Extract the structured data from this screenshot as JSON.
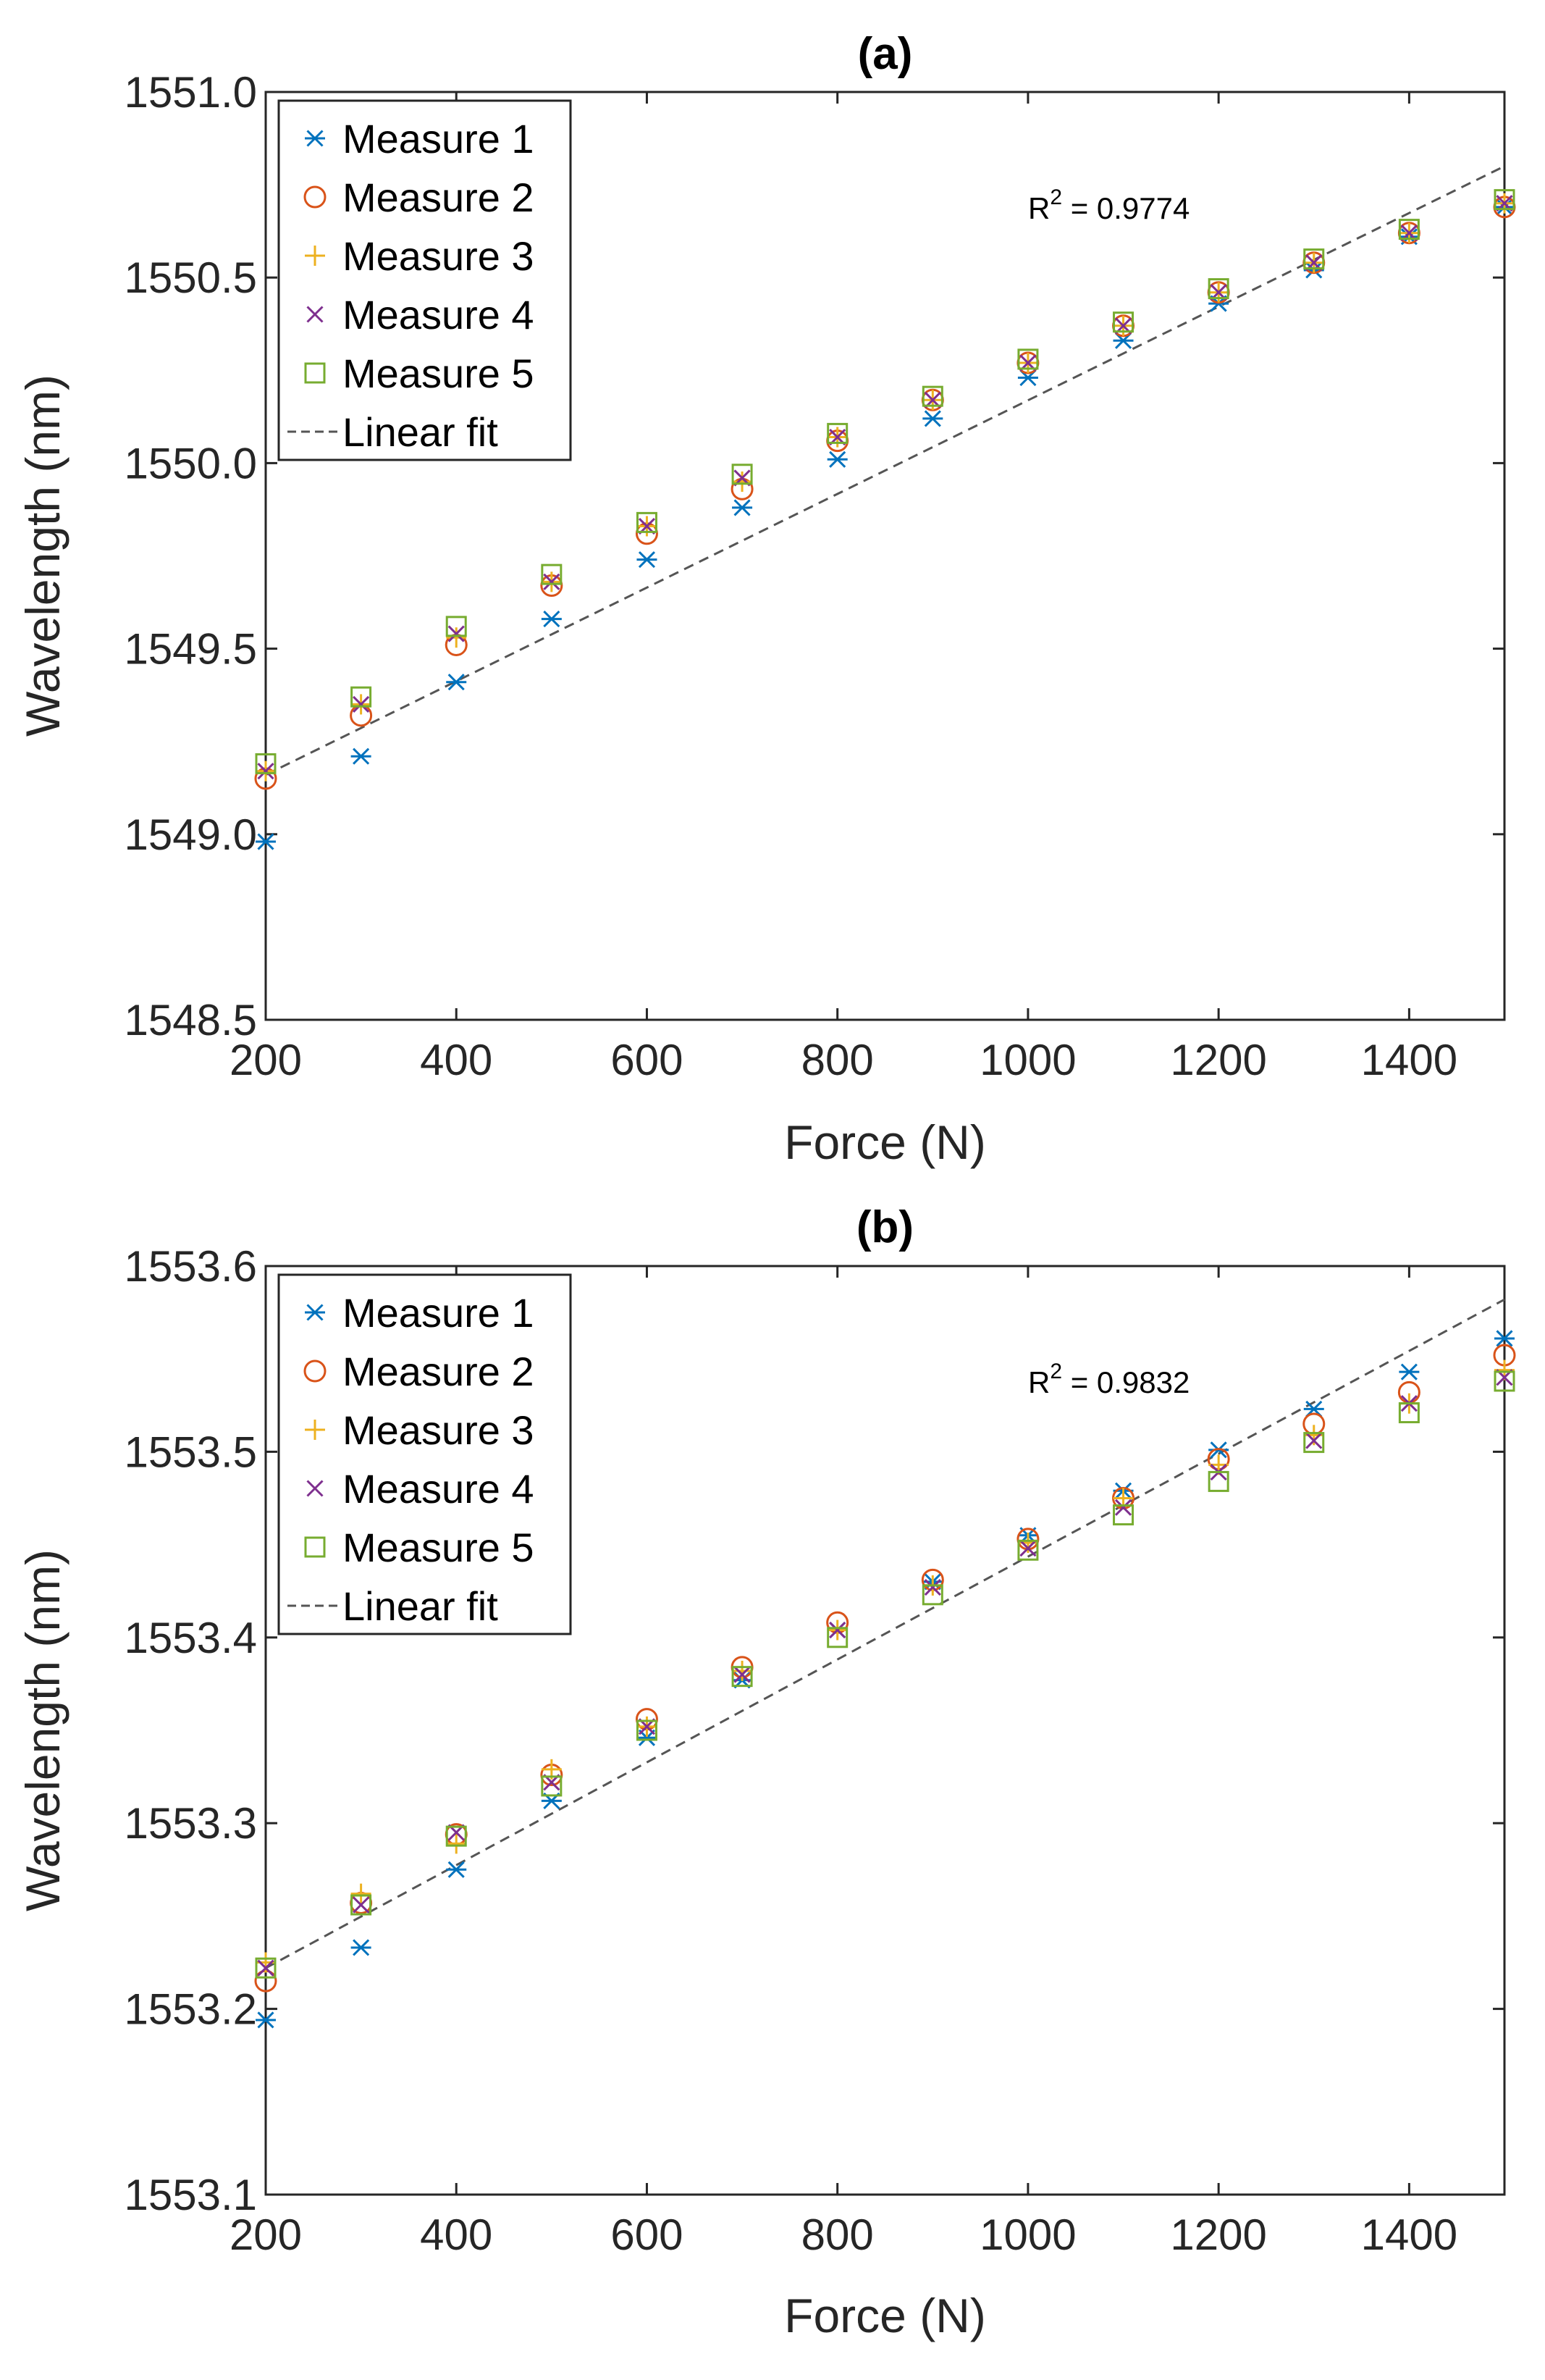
{
  "chart_data": [
    {
      "type": "scatter",
      "title": "(a)",
      "xlabel": "Force (N)",
      "ylabel": "Wavelength (nm)",
      "xlim": [
        200,
        1500
      ],
      "ylim": [
        1548.5,
        1551.0
      ],
      "xticks": [
        200,
        400,
        600,
        800,
        1000,
        1200,
        1400
      ],
      "xtick_labels": [
        "200",
        "400",
        "600",
        "800",
        "1000",
        "1200",
        "1400"
      ],
      "yticks": [
        1548.5,
        1549.0,
        1549.5,
        1550.0,
        1550.5,
        1551.0
      ],
      "ytick_labels": [
        "1548.5",
        "1549.0",
        "1549.5",
        "1550.0",
        "1550.5",
        "1551.0"
      ],
      "grid": false,
      "legend_position": "top-left",
      "annotation": {
        "prefix": "R",
        "sup": "2",
        "suffix": " = 0.9774"
      },
      "x": [
        200,
        300,
        400,
        500,
        600,
        700,
        800,
        900,
        1000,
        1100,
        1200,
        1300,
        1400,
        1500
      ],
      "series": [
        {
          "name": "Measure 1",
          "marker": "asterisk",
          "color": "#0072BD",
          "values": [
            1548.98,
            1549.21,
            1549.41,
            1549.58,
            1549.74,
            1549.88,
            1550.01,
            1550.12,
            1550.23,
            1550.33,
            1550.43,
            1550.52,
            1550.61,
            1550.69
          ]
        },
        {
          "name": "Measure 2",
          "marker": "circle",
          "color": "#D95319",
          "values": [
            1549.15,
            1549.32,
            1549.51,
            1549.67,
            1549.81,
            1549.93,
            1550.06,
            1550.17,
            1550.27,
            1550.37,
            1550.46,
            1550.54,
            1550.62,
            1550.69
          ]
        },
        {
          "name": "Measure 3",
          "marker": "plus",
          "color": "#EDB120",
          "values": [
            1549.17,
            1549.35,
            1549.53,
            1549.68,
            1549.83,
            1549.95,
            1550.07,
            1550.17,
            1550.27,
            1550.37,
            1550.46,
            1550.54,
            1550.62,
            1550.7
          ]
        },
        {
          "name": "Measure 4",
          "marker": "cross",
          "color": "#7E2F8E",
          "values": [
            1549.17,
            1549.35,
            1549.54,
            1549.68,
            1549.83,
            1549.96,
            1550.07,
            1550.17,
            1550.27,
            1550.37,
            1550.46,
            1550.54,
            1550.62,
            1550.7
          ]
        },
        {
          "name": "Measure 5",
          "marker": "square",
          "color": "#77AC30",
          "values": [
            1549.19,
            1549.37,
            1549.56,
            1549.7,
            1549.84,
            1549.97,
            1550.08,
            1550.18,
            1550.28,
            1550.38,
            1550.47,
            1550.55,
            1550.63,
            1550.71
          ]
        }
      ],
      "fit": {
        "name": "Linear fit",
        "style": "dashed",
        "color": "#555555",
        "x": [
          200,
          1500
        ],
        "y": [
          1549.16,
          1550.8
        ]
      }
    },
    {
      "type": "scatter",
      "title": "(b)",
      "xlabel": "Force (N)",
      "ylabel": "Wavelength (nm)",
      "xlim": [
        200,
        1500
      ],
      "ylim": [
        1553.1,
        1553.6
      ],
      "xticks": [
        200,
        400,
        600,
        800,
        1000,
        1200,
        1400
      ],
      "xtick_labels": [
        "200",
        "400",
        "600",
        "800",
        "1000",
        "1200",
        "1400"
      ],
      "yticks": [
        1553.1,
        1553.2,
        1553.3,
        1553.4,
        1553.5,
        1553.6
      ],
      "ytick_labels": [
        "1553.1",
        "1553.2",
        "1553.3",
        "1553.4",
        "1553.5",
        "1553.6"
      ],
      "grid": false,
      "legend_position": "top-left",
      "annotation": {
        "prefix": "R",
        "sup": "2",
        "suffix": " = 0.9832"
      },
      "x": [
        200,
        300,
        400,
        500,
        600,
        700,
        800,
        900,
        1000,
        1100,
        1200,
        1300,
        1400,
        1500
      ],
      "series": [
        {
          "name": "Measure 1",
          "marker": "asterisk",
          "color": "#0072BD",
          "values": [
            1553.194,
            1553.233,
            1553.275,
            1553.312,
            1553.346,
            1553.377,
            1553.404,
            1553.43,
            1553.455,
            1553.479,
            1553.501,
            1553.523,
            1553.543,
            1553.561
          ]
        },
        {
          "name": "Measure 2",
          "marker": "circle",
          "color": "#D95319",
          "values": [
            1553.215,
            1553.257,
            1553.294,
            1553.326,
            1553.356,
            1553.384,
            1553.408,
            1553.431,
            1553.453,
            1553.475,
            1553.496,
            1553.515,
            1553.532,
            1553.552
          ]
        },
        {
          "name": "Measure 3",
          "marker": "plus",
          "color": "#EDB120",
          "values": [
            1553.225,
            1553.262,
            1553.289,
            1553.329,
            1553.352,
            1553.382,
            1553.404,
            1553.428,
            1553.451,
            1553.475,
            1553.493,
            1553.509,
            1553.526,
            1553.544
          ]
        },
        {
          "name": "Measure 4",
          "marker": "cross",
          "color": "#7E2F8E",
          "values": [
            1553.222,
            1553.256,
            1553.295,
            1553.322,
            1553.352,
            1553.38,
            1553.404,
            1553.427,
            1553.448,
            1553.47,
            1553.489,
            1553.506,
            1553.526,
            1553.54
          ]
        },
        {
          "name": "Measure 5",
          "marker": "square",
          "color": "#77AC30",
          "values": [
            1553.222,
            1553.256,
            1553.293,
            1553.32,
            1553.35,
            1553.379,
            1553.4,
            1553.423,
            1553.447,
            1553.466,
            1553.484,
            1553.505,
            1553.521,
            1553.538
          ]
        }
      ],
      "fit": {
        "name": "Linear fit",
        "style": "dashed",
        "color": "#555555",
        "x": [
          200,
          1500
        ],
        "y": [
          1553.222,
          1553.582
        ]
      }
    }
  ]
}
